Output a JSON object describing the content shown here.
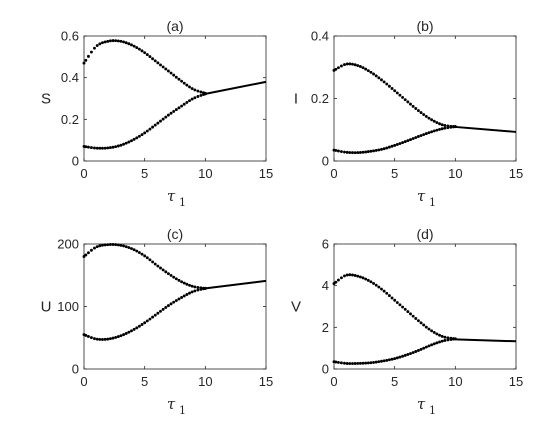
{
  "chart_data": [
    {
      "type": "scatter",
      "title": "(a)",
      "ylabel": "S",
      "xlabel": "τ",
      "xlabel_sub": "1",
      "xlim": [
        0,
        15
      ],
      "ylim": [
        0,
        0.6
      ],
      "xticks": [
        0,
        5,
        10,
        15
      ],
      "yticks": [
        0,
        0.2,
        0.4,
        0.6
      ],
      "xtick_labels": [
        "0",
        "5",
        "10",
        "15"
      ],
      "ytick_labels": [
        "0",
        "0.2",
        "0.4",
        "0.6"
      ],
      "series": [
        {
          "style": "dotted",
          "x": [
            0,
            1,
            2,
            3,
            4,
            5,
            6,
            7,
            8,
            9,
            10
          ],
          "y": [
            0.47,
            0.55,
            0.575,
            0.575,
            0.555,
            0.52,
            0.475,
            0.43,
            0.385,
            0.345,
            0.325
          ]
        },
        {
          "style": "dotted",
          "x": [
            0,
            1,
            2,
            3,
            4,
            5,
            6,
            7,
            8,
            9,
            10
          ],
          "y": [
            0.07,
            0.062,
            0.063,
            0.075,
            0.1,
            0.135,
            0.178,
            0.222,
            0.262,
            0.3,
            0.322
          ]
        },
        {
          "style": "line",
          "x": [
            10,
            15
          ],
          "y": [
            0.322,
            0.38
          ]
        }
      ]
    },
    {
      "type": "scatter",
      "title": "(b)",
      "ylabel": "I",
      "xlabel": "τ",
      "xlabel_sub": "1",
      "xlim": [
        0,
        15
      ],
      "ylim": [
        0,
        0.4
      ],
      "xticks": [
        0,
        5,
        10,
        15
      ],
      "yticks": [
        0,
        0.2,
        0.4
      ],
      "xtick_labels": [
        "0",
        "5",
        "10",
        "15"
      ],
      "ytick_labels": [
        "0",
        "0.2",
        "0.4"
      ],
      "series": [
        {
          "style": "dotted",
          "x": [
            0,
            1,
            2,
            3,
            4,
            5,
            6,
            7,
            8,
            9,
            10
          ],
          "y": [
            0.29,
            0.31,
            0.305,
            0.285,
            0.257,
            0.225,
            0.192,
            0.16,
            0.133,
            0.115,
            0.11
          ]
        },
        {
          "style": "dotted",
          "x": [
            0,
            1,
            2,
            3,
            4,
            5,
            6,
            7,
            8,
            9,
            10
          ],
          "y": [
            0.035,
            0.028,
            0.027,
            0.031,
            0.038,
            0.05,
            0.064,
            0.079,
            0.093,
            0.104,
            0.11
          ]
        },
        {
          "style": "line",
          "x": [
            10,
            15
          ],
          "y": [
            0.109,
            0.093
          ]
        }
      ]
    },
    {
      "type": "scatter",
      "title": "(c)",
      "ylabel": "U",
      "xlabel": "τ",
      "xlabel_sub": "1",
      "xlim": [
        0,
        15
      ],
      "ylim": [
        0,
        200
      ],
      "xticks": [
        0,
        5,
        10,
        15
      ],
      "yticks": [
        0,
        100,
        200
      ],
      "xtick_labels": [
        "0",
        "5",
        "10",
        "15"
      ],
      "ytick_labels": [
        "0",
        "100",
        "200"
      ],
      "series": [
        {
          "style": "dotted",
          "x": [
            0,
            1,
            2,
            3,
            4,
            5,
            6,
            7,
            8,
            9,
            10
          ],
          "y": [
            180,
            195,
            199,
            198,
            192,
            181,
            166,
            152,
            140,
            132,
            129
          ]
        },
        {
          "style": "dotted",
          "x": [
            0,
            1,
            2,
            3,
            4,
            5,
            6,
            7,
            8,
            9,
            10
          ],
          "y": [
            55,
            48,
            48,
            53,
            62,
            74,
            88,
            102,
            114,
            124,
            129
          ]
        },
        {
          "style": "line",
          "x": [
            10,
            15
          ],
          "y": [
            129,
            141
          ]
        }
      ]
    },
    {
      "type": "scatter",
      "title": "(d)",
      "ylabel": "V",
      "xlabel": "τ",
      "xlabel_sub": "1",
      "xlim": [
        0,
        15
      ],
      "ylim": [
        0,
        6
      ],
      "xticks": [
        0,
        5,
        10,
        15
      ],
      "yticks": [
        0,
        2,
        4,
        6
      ],
      "xtick_labels": [
        "0",
        "5",
        "10",
        "15"
      ],
      "ytick_labels": [
        "0",
        "2",
        "4",
        "6"
      ],
      "series": [
        {
          "style": "dotted",
          "x": [
            0,
            1,
            2,
            3,
            4,
            5,
            6,
            7,
            8,
            9,
            10
          ],
          "y": [
            4.1,
            4.5,
            4.45,
            4.2,
            3.8,
            3.3,
            2.8,
            2.3,
            1.85,
            1.55,
            1.45
          ]
        },
        {
          "style": "dotted",
          "x": [
            0,
            1,
            2,
            3,
            4,
            5,
            6,
            7,
            8,
            9,
            10
          ],
          "y": [
            0.35,
            0.27,
            0.27,
            0.3,
            0.38,
            0.5,
            0.68,
            0.9,
            1.15,
            1.35,
            1.45
          ]
        },
        {
          "style": "line",
          "x": [
            10,
            15
          ],
          "y": [
            1.42,
            1.33
          ]
        }
      ]
    }
  ]
}
